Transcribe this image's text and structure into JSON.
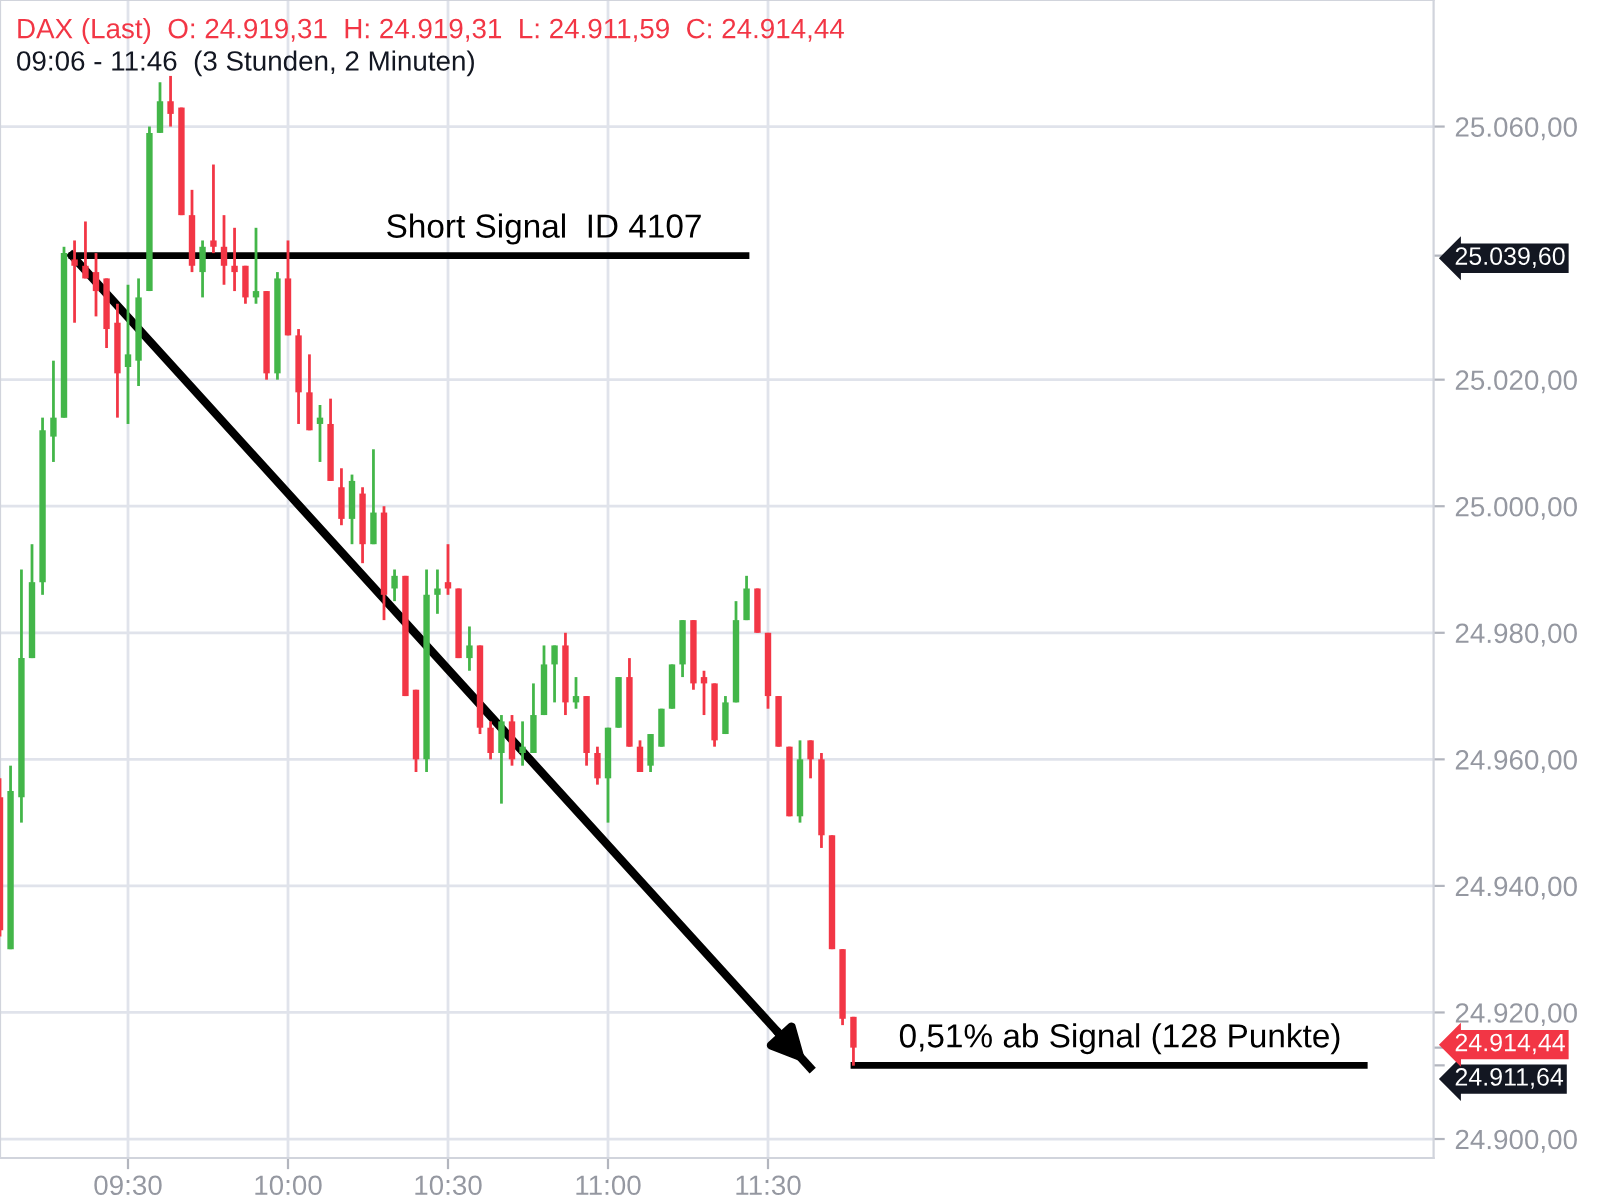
{
  "chart_data": {
    "type": "candlestick",
    "title": "DAX (Last)  O: 24.919,31  H: 24.919,31  L: 24.911,59  C: 24.914,44",
    "subtitle": "09:06 - 11:46  (3 Stunden, 2 Minuten)",
    "x": [
      9.1,
      9.133,
      9.167,
      9.2,
      9.233,
      9.267,
      9.3,
      9.333,
      9.367,
      9.4,
      9.433,
      9.467,
      9.5,
      9.533,
      9.567,
      9.6,
      9.633,
      9.667,
      9.7,
      9.733,
      9.767,
      9.8,
      9.833,
      9.867,
      9.9,
      9.933,
      9.967,
      10.0,
      10.033,
      10.067,
      10.1,
      10.133,
      10.167,
      10.2,
      10.233,
      10.267,
      10.3,
      10.333,
      10.367,
      10.4,
      10.433,
      10.467,
      10.5,
      10.533,
      10.567,
      10.6,
      10.633,
      10.667,
      10.7,
      10.733,
      10.767,
      10.8,
      10.833,
      10.867,
      10.9,
      10.933,
      10.967,
      11.0,
      11.033,
      11.067,
      11.1,
      11.133,
      11.167,
      11.2,
      11.233,
      11.267,
      11.3,
      11.333,
      11.367,
      11.4,
      11.433,
      11.467,
      11.5,
      11.533,
      11.567,
      11.6,
      11.633,
      11.667,
      11.7,
      11.733,
      11.767
    ],
    "ohlc": [
      [
        24954,
        24957,
        24932,
        24933
      ],
      [
        24930,
        24959,
        24930,
        24955
      ],
      [
        24954,
        24990,
        24950,
        24976
      ],
      [
        24976,
        24994,
        24976,
        24988
      ],
      [
        24988,
        25014,
        24986,
        25012
      ],
      [
        25011,
        25023,
        25007,
        25014
      ],
      [
        25014,
        25041,
        25014,
        25040
      ],
      [
        25039,
        25042,
        25029,
        25038
      ],
      [
        25038,
        25045,
        25036,
        25036
      ],
      [
        25037,
        25040,
        25030,
        25034
      ],
      [
        25036,
        25036,
        25025,
        25028
      ],
      [
        25029,
        25032,
        25014,
        25021
      ],
      [
        25022,
        25035,
        25013,
        25024
      ],
      [
        25023,
        25036,
        25019,
        25033
      ],
      [
        25034,
        25060,
        25034,
        25059
      ],
      [
        25059,
        25067,
        25059,
        25064
      ],
      [
        25064,
        25068,
        25060,
        25062
      ],
      [
        25063,
        25063,
        25046,
        25046
      ],
      [
        25046,
        25050,
        25037,
        25038
      ],
      [
        25037,
        25042,
        25033,
        25041
      ],
      [
        25042,
        25054,
        25040,
        25041
      ],
      [
        25041,
        25046,
        25035,
        25038
      ],
      [
        25038,
        25044,
        25034,
        25037
      ],
      [
        25038,
        25038,
        25032,
        25033
      ],
      [
        25033,
        25044,
        25032,
        25034
      ],
      [
        25034,
        25034,
        25020,
        25021
      ],
      [
        25021,
        25037,
        25020,
        25036
      ],
      [
        25036,
        25042,
        25027,
        25027
      ],
      [
        25027,
        25028,
        25013,
        25018
      ],
      [
        25018,
        25024,
        25012,
        25012
      ],
      [
        25013,
        25016,
        25007,
        25014
      ],
      [
        25013,
        25017,
        25004,
        25004
      ],
      [
        25003,
        25006,
        24997,
        24998
      ],
      [
        24998,
        25005,
        24994,
        25004
      ],
      [
        25002,
        25003,
        24991,
        24994
      ],
      [
        24994,
        25009,
        24994,
        24999
      ],
      [
        24999,
        25000,
        24982,
        24986
      ],
      [
        24987,
        24990,
        24985,
        24989
      ],
      [
        24989,
        24989,
        24970,
        24970
      ],
      [
        24971,
        24971,
        24958,
        24960
      ],
      [
        24960,
        24990,
        24958,
        24986
      ],
      [
        24986,
        24990,
        24983,
        24987
      ],
      [
        24988,
        24994,
        24986,
        24987
      ],
      [
        24987,
        24987,
        24976,
        24976
      ],
      [
        24976,
        24981,
        24974,
        24978
      ],
      [
        24978,
        24978,
        24964,
        24965
      ],
      [
        24965,
        24966,
        24960,
        24961
      ],
      [
        24961,
        24967,
        24953,
        24966
      ],
      [
        24966,
        24967,
        24959,
        24960
      ],
      [
        24961,
        24966,
        24959,
        24962
      ],
      [
        24961,
        24972,
        24961,
        24967
      ],
      [
        24967,
        24978,
        24967,
        24975
      ],
      [
        24975,
        24978,
        24969,
        24978
      ],
      [
        24978,
        24980,
        24967,
        24969
      ],
      [
        24969,
        24973,
        24968,
        24970
      ],
      [
        24970,
        24970,
        24959,
        24961
      ],
      [
        24961,
        24962,
        24956,
        24957
      ],
      [
        24957,
        24965,
        24950,
        24965
      ],
      [
        24965,
        24973,
        24965,
        24973
      ],
      [
        24973,
        24976,
        24962,
        24962
      ],
      [
        24962,
        24963,
        24958,
        24958
      ],
      [
        24959,
        24964,
        24958,
        24964
      ],
      [
        24962,
        24968,
        24962,
        24968
      ],
      [
        24968,
        24975,
        24968,
        24975
      ],
      [
        24975,
        24982,
        24973,
        24982
      ],
      [
        24982,
        24982,
        24971,
        24972
      ],
      [
        24973,
        24974,
        24967,
        24972
      ],
      [
        24972,
        24972,
        24962,
        24963
      ],
      [
        24964,
        24970,
        24964,
        24969
      ],
      [
        24969,
        24985,
        24969,
        24982
      ],
      [
        24982,
        24989,
        24982,
        24987
      ],
      [
        24987,
        24987,
        24980,
        24980
      ],
      [
        24980,
        24980,
        24968,
        24970
      ],
      [
        24970,
        24970,
        24962,
        24962
      ],
      [
        24962,
        24962,
        24951,
        24951
      ],
      [
        24951,
        24963,
        24950,
        24960
      ],
      [
        24963,
        24963,
        24957,
        24960
      ],
      [
        24960,
        24961,
        24946,
        24948
      ],
      [
        24948,
        24948,
        24930,
        24930
      ],
      [
        24930,
        24930,
        24918,
        24919
      ],
      [
        24919.31,
        24919.31,
        24911.59,
        24914.44
      ]
    ],
    "series": [
      {
        "type": "line",
        "x": [
          9.325,
          11.431
        ],
        "values": [
          25039.6,
          25039.6
        ],
        "color": "#000000"
      },
      {
        "type": "line",
        "x": [
          9.325,
          11.631
        ],
        "values": [
          25039.6,
          24911.3
        ],
        "color": "#000000"
      },
      {
        "type": "line",
        "x": [
          11.769,
          13.363
        ],
        "values": [
          24911.64,
          24911.64
        ],
        "color": "#000000"
      }
    ],
    "annotations": [
      {
        "text": "Short Signal  ID 4107",
        "x": 10.8,
        "y": 25039.6
      },
      {
        "text": "0,51% ab Signal (128 Punkte)",
        "x": 12.6,
        "y": 24911.64
      }
    ],
    "xlim": [
      9.1,
      13.58
    ],
    "xticks": [
      {
        "value": 9.5,
        "label": "09:30"
      },
      {
        "value": 10.0,
        "label": "10:00"
      },
      {
        "value": 10.5,
        "label": "10:30"
      },
      {
        "value": 11.0,
        "label": "11:00"
      },
      {
        "value": 11.5,
        "label": "11:30"
      }
    ],
    "ylim": [
      24897,
      25080
    ],
    "yticks": [
      {
        "value": 24900,
        "label": "24.900,00"
      },
      {
        "value": 24920,
        "label": "24.920,00"
      },
      {
        "value": 24940,
        "label": "24.940,00"
      },
      {
        "value": 24960,
        "label": "24.960,00"
      },
      {
        "value": 24980,
        "label": "24.980,00"
      },
      {
        "value": 25000,
        "label": "25.000,00"
      },
      {
        "value": 25020,
        "label": "25.020,00"
      },
      {
        "value": 25060,
        "label": "25.060,00"
      },
      {
        "value": 25039.6,
        "label": "25.039,60"
      },
      {
        "value": 24911.64,
        "label": "24.911,64"
      },
      {
        "value": 24914.44,
        "label": "24.914,44"
      }
    ],
    "grid": true,
    "legend": false
  }
}
